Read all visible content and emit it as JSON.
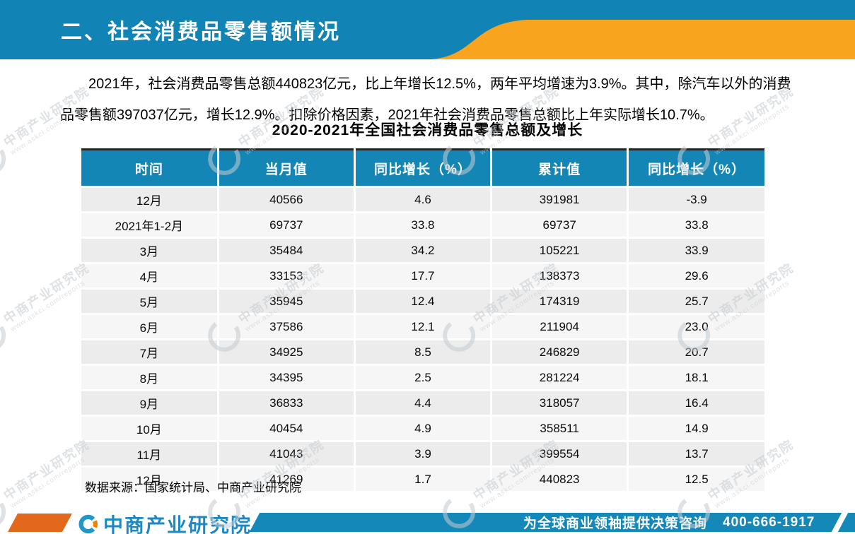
{
  "banner": {
    "title": "二、社会消费品零售额情况"
  },
  "paragraph": "2021年，社会消费品零售总额440823亿元，比上年增长12.5%，两年平均增速为3.9%。其中，除汽车以外的消费品零售额397037亿元，增长12.9%。扣除价格因素，2021年社会消费品零售总额比上年实际增长10.7%。",
  "table": {
    "title": "2020-2021年全国社会消费品零售总额及增长",
    "headers": [
      "时间",
      "当月值",
      "同比增长（%）",
      "累计值",
      "同比增长（%）"
    ],
    "rows": [
      [
        "12月",
        "40566",
        "4.6",
        "391981",
        "-3.9"
      ],
      [
        "2021年1-2月",
        "69737",
        "33.8",
        "69737",
        "33.8"
      ],
      [
        "3月",
        "35484",
        "34.2",
        "105221",
        "33.9"
      ],
      [
        "4月",
        "33153",
        "17.7",
        "138373",
        "29.6"
      ],
      [
        "5月",
        "35945",
        "12.4",
        "174319",
        "25.7"
      ],
      [
        "6月",
        "37586",
        "12.1",
        "211904",
        "23.0"
      ],
      [
        "7月",
        "34925",
        "8.5",
        "246829",
        "20.7"
      ],
      [
        "8月",
        "34395",
        "2.5",
        "281224",
        "18.1"
      ],
      [
        "9月",
        "36833",
        "4.4",
        "318057",
        "16.4"
      ],
      [
        "10月",
        "40454",
        "4.9",
        "358511",
        "14.9"
      ],
      [
        "11月",
        "41043",
        "3.9",
        "399554",
        "13.7"
      ],
      [
        "12月",
        "41269",
        "1.7",
        "440823",
        "12.5"
      ]
    ],
    "source": "数据来源：国家统计局、中商产业研究院"
  },
  "chart_data": {
    "type": "table",
    "title": "2020-2021年全国社会消费品零售总额及增长",
    "columns": [
      "时间",
      "当月值",
      "同比增长（%）",
      "累计值",
      "同比增长（%）"
    ],
    "rows": [
      [
        "12月",
        40566,
        4.6,
        391981,
        -3.9
      ],
      [
        "2021年1-2月",
        69737,
        33.8,
        69737,
        33.8
      ],
      [
        "3月",
        35484,
        34.2,
        105221,
        33.9
      ],
      [
        "4月",
        33153,
        17.7,
        138373,
        29.6
      ],
      [
        "5月",
        35945,
        12.4,
        174319,
        25.7
      ],
      [
        "6月",
        37586,
        12.1,
        211904,
        23.0
      ],
      [
        "7月",
        34925,
        8.5,
        246829,
        20.7
      ],
      [
        "8月",
        34395,
        2.5,
        281224,
        18.1
      ],
      [
        "9月",
        36833,
        4.4,
        318057,
        16.4
      ],
      [
        "10月",
        40454,
        4.9,
        358511,
        14.9
      ],
      [
        "11月",
        41043,
        3.9,
        399554,
        13.7
      ],
      [
        "12月",
        41269,
        1.7,
        440823,
        12.5
      ]
    ]
  },
  "footer": {
    "logo_text": "中商产业研究院",
    "slogan": "为全球商业领袖提供决策咨询",
    "phone": "400-666-1917"
  },
  "watermark": {
    "brand": "中商产业研究院",
    "url": "www.askci.com/reports"
  },
  "colors": {
    "banner_blue": "#1184b5",
    "swoosh_orange": "#f8a41e",
    "table_header_blue": "#1486b6",
    "footer_blue": "#1488b8",
    "footer_orange": "#e2691b",
    "logo_blue": "#1e88c4",
    "row_gray": "#ececec"
  }
}
